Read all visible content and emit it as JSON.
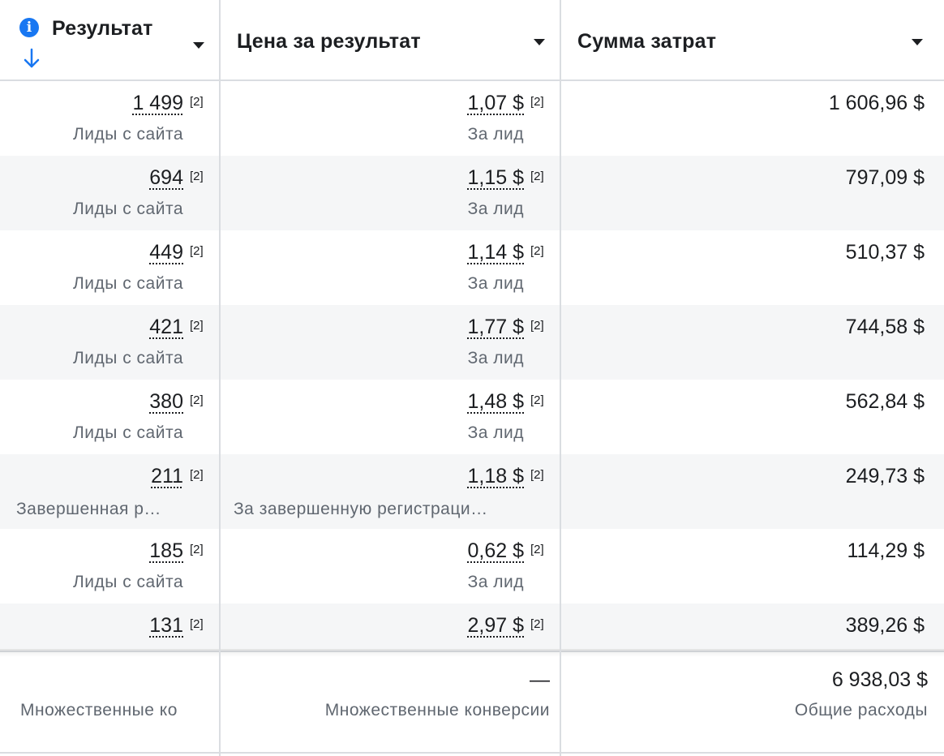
{
  "header": {
    "result": "Результат",
    "cost_per_result": "Цена за результат",
    "amount_spent": "Сумма затрат"
  },
  "rows": [
    {
      "result": "1 499",
      "result_note": "[2]",
      "result_type": "Лиды с сайта",
      "cost": "1,07 $",
      "cost_note": "[2]",
      "cost_type": "За лид",
      "spent": "1 606,96 $"
    },
    {
      "result": "694",
      "result_note": "[2]",
      "result_type": "Лиды с сайта",
      "cost": "1,15 $",
      "cost_note": "[2]",
      "cost_type": "За лид",
      "spent": "797,09 $"
    },
    {
      "result": "449",
      "result_note": "[2]",
      "result_type": "Лиды с сайта",
      "cost": "1,14 $",
      "cost_note": "[2]",
      "cost_type": "За лид",
      "spent": "510,37 $"
    },
    {
      "result": "421",
      "result_note": "[2]",
      "result_type": "Лиды с сайта",
      "cost": "1,77 $",
      "cost_note": "[2]",
      "cost_type": "За лид",
      "spent": "744,58 $"
    },
    {
      "result": "380",
      "result_note": "[2]",
      "result_type": "Лиды с сайта",
      "cost": "1,48 $",
      "cost_note": "[2]",
      "cost_type": "За лид",
      "spent": "562,84 $"
    },
    {
      "result": "211",
      "result_note": "[2]",
      "result_type": "Завершенная р…",
      "cost": "1,18 $",
      "cost_note": "[2]",
      "cost_type": "За завершенную регистраци…",
      "spent": "249,73 $"
    },
    {
      "result": "185",
      "result_note": "[2]",
      "result_type": "Лиды с сайта",
      "cost": "0,62 $",
      "cost_note": "[2]",
      "cost_type": "За лид",
      "spent": "114,29 $"
    },
    {
      "result": "131",
      "result_note": "[2]",
      "result_type": "",
      "cost": "2,97 $",
      "cost_note": "[2]",
      "cost_type": "",
      "spent": "389,26 $"
    }
  ],
  "footer": {
    "result_label": "Множественные ко",
    "cost_value": "—",
    "cost_label": "Множественные конверсии",
    "spent_value": "6 938,03 $",
    "spent_label": "Общие расходы"
  }
}
